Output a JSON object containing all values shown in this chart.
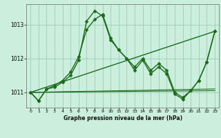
{
  "title": "Graphe pression niveau de la mer (hPa)",
  "background_color": "#cceedd",
  "grid_color": "#99ccbb",
  "line_color": "#1a6b1a",
  "xlim": [
    -0.5,
    23.5
  ],
  "ylim": [
    1010.55,
    1013.6
  ],
  "yticks": [
    1011,
    1012,
    1013
  ],
  "xticks": [
    0,
    1,
    2,
    3,
    4,
    5,
    6,
    7,
    8,
    9,
    10,
    11,
    12,
    13,
    14,
    15,
    16,
    17,
    18,
    19,
    20,
    21,
    22,
    23
  ],
  "series_main1": {
    "x": [
      0,
      1,
      2,
      3,
      4,
      5,
      6,
      7,
      8,
      9,
      10,
      11,
      12,
      13,
      14,
      15,
      16,
      17,
      18,
      19,
      20,
      21,
      22,
      23
    ],
    "y": [
      1011.0,
      1010.75,
      1011.1,
      1011.2,
      1011.35,
      1011.6,
      1012.05,
      1012.85,
      1013.15,
      1013.3,
      1012.6,
      1012.25,
      1012.0,
      1011.75,
      1012.0,
      1011.65,
      1011.85,
      1011.65,
      1011.0,
      1010.85,
      1011.05,
      1011.35,
      1011.9,
      1012.8
    ]
  },
  "series_main2": {
    "x": [
      0,
      1,
      2,
      3,
      4,
      5,
      6,
      7,
      8,
      9,
      10,
      11,
      12,
      13,
      14,
      15,
      16,
      17,
      18,
      19,
      20,
      21,
      22,
      23
    ],
    "y": [
      1011.0,
      1010.75,
      1011.1,
      1011.15,
      1011.3,
      1011.5,
      1011.95,
      1013.1,
      1013.4,
      1013.25,
      1012.55,
      1012.25,
      1012.0,
      1011.65,
      1011.95,
      1011.55,
      1011.75,
      1011.55,
      1010.95,
      1010.8,
      1011.05,
      1011.35,
      1011.9,
      1012.8
    ]
  },
  "trend_line1": {
    "x": [
      0,
      23
    ],
    "y": [
      1011.0,
      1011.05
    ]
  },
  "trend_line2": {
    "x": [
      0,
      23
    ],
    "y": [
      1011.0,
      1011.1
    ]
  },
  "trend_line3": {
    "x": [
      0,
      23
    ],
    "y": [
      1011.0,
      1012.8
    ]
  }
}
